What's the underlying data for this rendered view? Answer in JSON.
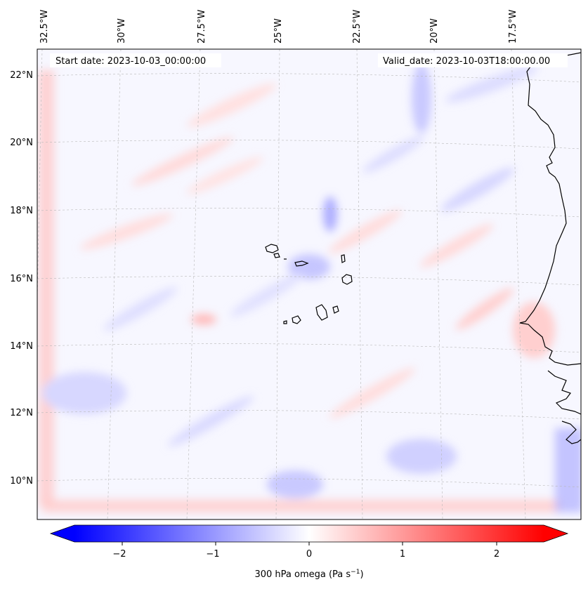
{
  "map": {
    "header": {
      "start_date": "Start date: 2023-10-03_00:00:00",
      "valid_date": "Valid_date: 2023-10-03T18:00:00.00"
    },
    "lon_labels": [
      "32.5°W",
      "30°W",
      "27.5°W",
      "25°W",
      "22.5°W",
      "20°W",
      "17.5°W"
    ],
    "lat_labels": [
      "22°N",
      "20°N",
      "18°N",
      "16°N",
      "14°N",
      "12°N",
      "10°N"
    ],
    "colorbar": {
      "ticks": [
        "−2",
        "−1",
        "0",
        "1",
        "2"
      ],
      "label": "300 hPa omega (Pa s",
      "label_sup": "−1",
      "label_close": ")",
      "min": -2.7,
      "max": 2.7,
      "colormap": "bwr",
      "colors": {
        "low": "#0000ff",
        "mid": "#ffffff",
        "high": "#ff0000"
      }
    },
    "colors": {
      "coastline": "#000000",
      "gridline": "#b0b0b0",
      "field_background": "#f7f7ff"
    }
  }
}
